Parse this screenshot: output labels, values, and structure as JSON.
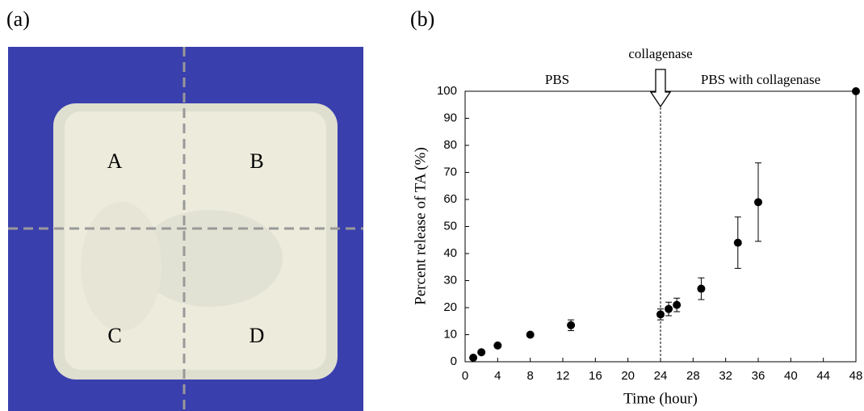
{
  "photo": {
    "label": "(a)",
    "regions": [
      "A",
      "B",
      "C",
      "D"
    ]
  },
  "chart_data": {
    "type": "scatter",
    "label": "(b)",
    "x_label": "Time (hour)",
    "y_label": "Percent release of TA (%)",
    "x": [
      1,
      2,
      4,
      8,
      13,
      24,
      25,
      26,
      29,
      33.5,
      36,
      48
    ],
    "values": [
      1.5,
      3.5,
      6,
      10,
      13.5,
      17.5,
      19.5,
      21,
      27,
      44,
      59,
      100
    ],
    "errors": [
      0.5,
      0.5,
      0.5,
      0.5,
      2,
      2,
      2.5,
      2.5,
      4,
      9.5,
      14.5,
      null
    ],
    "color": "#000000",
    "xlim": [
      0,
      48
    ],
    "xticks": [
      0,
      4,
      8,
      12,
      16,
      20,
      24,
      28,
      32,
      36,
      40,
      44,
      48
    ],
    "ylim": [
      0,
      100
    ],
    "yticks": [
      0,
      10,
      20,
      30,
      40,
      50,
      60,
      70,
      80,
      90,
      100
    ],
    "marker": {
      "x": 24,
      "label": "collagenase"
    },
    "annotations": [
      "PBS",
      "PBS with collagenase"
    ]
  }
}
